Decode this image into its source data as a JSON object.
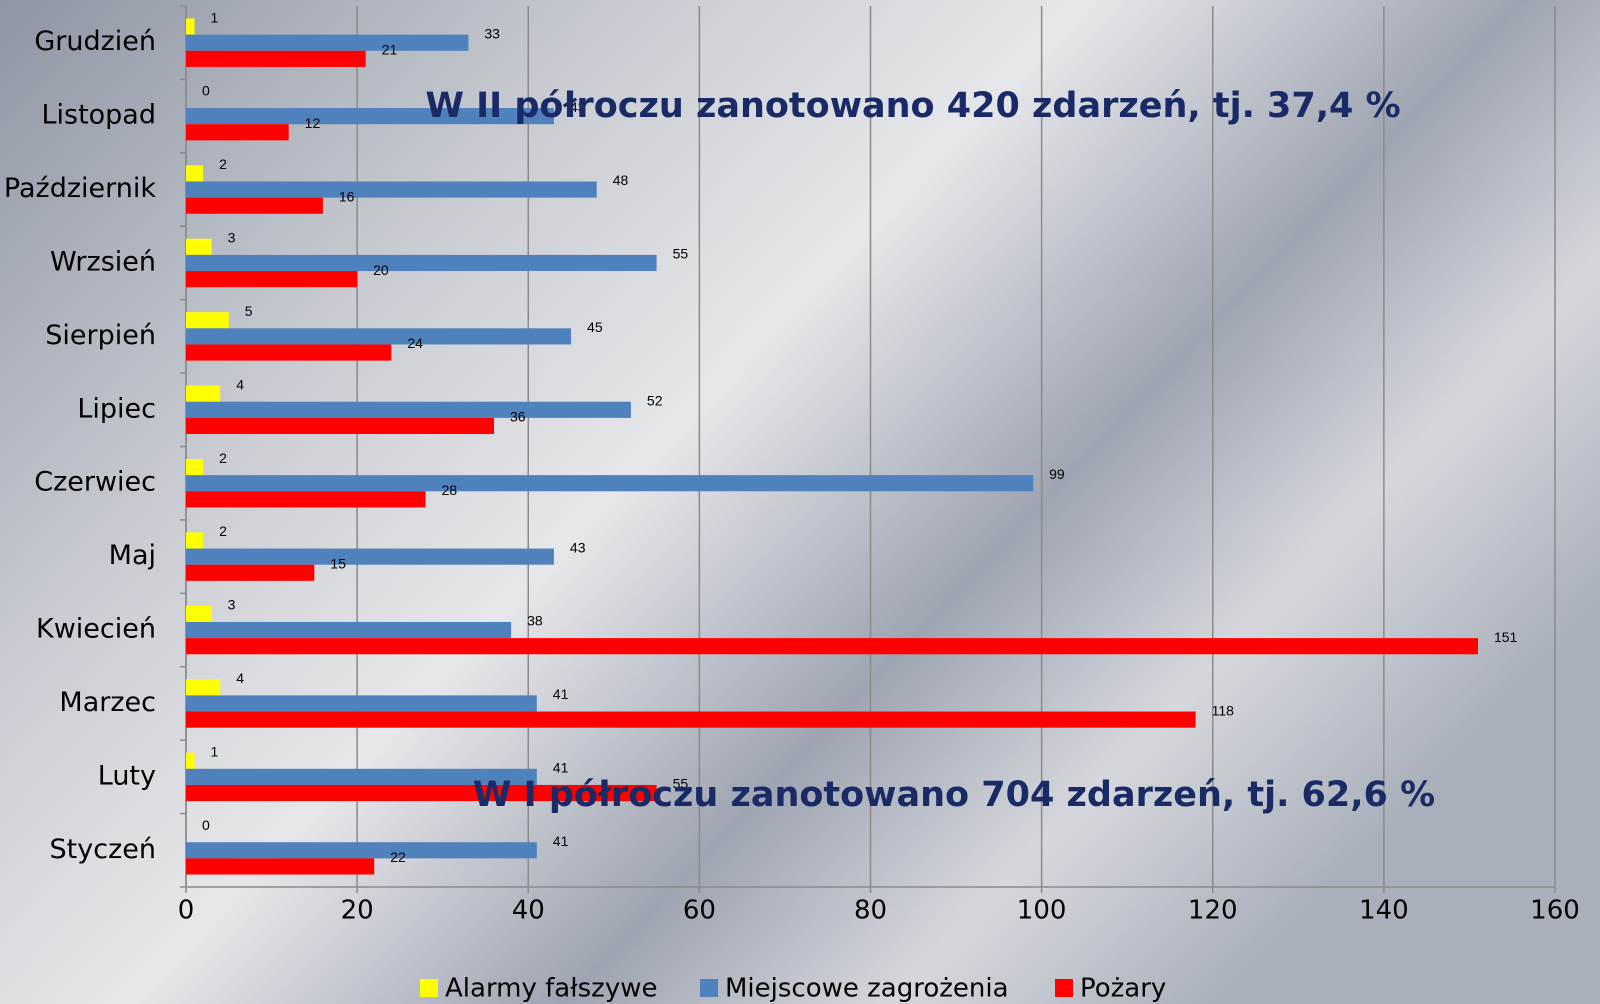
{
  "chart_data": {
    "type": "barh",
    "categories": [
      "Grudzień",
      "Listopad",
      "Październik",
      "Wrzsień",
      "Sierpień",
      "Lipiec",
      "Czerwiec",
      "Maj",
      "Kwiecień",
      "Marzec",
      "Luty",
      "Styczeń"
    ],
    "series": [
      {
        "name": "Alarmy fałszywe",
        "color": "#ffff00",
        "values": [
          1,
          0,
          2,
          3,
          5,
          4,
          2,
          2,
          3,
          4,
          1,
          0
        ]
      },
      {
        "name": "Miejscowe zagrożenia",
        "color": "#4f81bd",
        "values": [
          33,
          43,
          48,
          55,
          45,
          52,
          99,
          43,
          38,
          41,
          41,
          41
        ]
      },
      {
        "name": "Pożary",
        "color": "#ff0000",
        "values": [
          21,
          12,
          16,
          20,
          24,
          36,
          28,
          15,
          151,
          118,
          55,
          22
        ]
      }
    ],
    "xlim": [
      0,
      160
    ],
    "xticks": [
      0,
      20,
      40,
      60,
      80,
      100,
      120,
      140,
      160
    ],
    "grid": true,
    "legend": "bottom",
    "annotations": [
      "W II półroczu zanotowano 420 zdarzeń, tj. 37,4 %",
      "W I półroczu zanotowano 704 zdarzeń, tj. 62,6 %"
    ]
  }
}
